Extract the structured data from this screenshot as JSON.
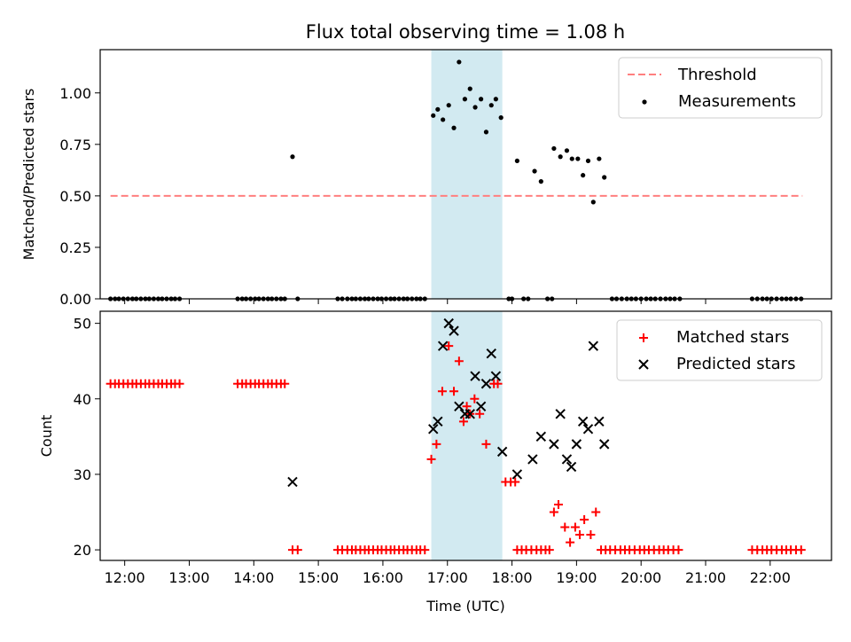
{
  "title": "Flux total observing time = 1.08 h",
  "colors": {
    "threshold": "#ff7f7f",
    "measurement": "#000000",
    "matched": "#ff0000",
    "predicted": "#000000",
    "span": "#add8e6"
  },
  "chart_data": [
    {
      "type": "scatter",
      "ylabel": "Matched/Predicted stars",
      "ylim": [
        0,
        1.21
      ],
      "xlim": [
        11.62,
        22.95
      ],
      "yticks": [
        "0.00",
        "0.25",
        "0.50",
        "0.75",
        "1.00"
      ],
      "yticks_values": [
        0,
        0.25,
        0.5,
        0.75,
        1.0
      ],
      "highlight_span": [
        16.75,
        17.85
      ],
      "legend": [
        "Threshold",
        "Measurements"
      ],
      "legend_position": "top-right",
      "threshold": {
        "name": "Threshold",
        "x": [
          11.78,
          22.5
        ],
        "y": 0.5,
        "style": "dashed"
      },
      "measurements": {
        "name": "Measurements",
        "points": [
          [
            11.78,
            0
          ],
          [
            11.85,
            0
          ],
          [
            11.91,
            0
          ],
          [
            11.98,
            0
          ],
          [
            12.05,
            0
          ],
          [
            12.12,
            0
          ],
          [
            12.18,
            0
          ],
          [
            12.25,
            0
          ],
          [
            12.32,
            0
          ],
          [
            12.38,
            0
          ],
          [
            12.45,
            0
          ],
          [
            12.52,
            0
          ],
          [
            12.58,
            0
          ],
          [
            12.65,
            0
          ],
          [
            12.72,
            0
          ],
          [
            12.78,
            0
          ],
          [
            12.85,
            0
          ],
          [
            13.75,
            0
          ],
          [
            13.82,
            0
          ],
          [
            13.88,
            0
          ],
          [
            13.95,
            0
          ],
          [
            14.02,
            0
          ],
          [
            14.08,
            0
          ],
          [
            14.15,
            0
          ],
          [
            14.22,
            0
          ],
          [
            14.28,
            0
          ],
          [
            14.35,
            0
          ],
          [
            14.42,
            0
          ],
          [
            14.48,
            0
          ],
          [
            14.6,
            0.69
          ],
          [
            14.68,
            0
          ],
          [
            15.3,
            0
          ],
          [
            15.37,
            0
          ],
          [
            15.45,
            0
          ],
          [
            15.52,
            0
          ],
          [
            15.58,
            0
          ],
          [
            15.65,
            0
          ],
          [
            15.72,
            0
          ],
          [
            15.78,
            0
          ],
          [
            15.85,
            0
          ],
          [
            15.92,
            0
          ],
          [
            15.98,
            0
          ],
          [
            16.05,
            0
          ],
          [
            16.12,
            0
          ],
          [
            16.18,
            0
          ],
          [
            16.25,
            0
          ],
          [
            16.32,
            0
          ],
          [
            16.38,
            0
          ],
          [
            16.45,
            0
          ],
          [
            16.52,
            0
          ],
          [
            16.58,
            0
          ],
          [
            16.65,
            0
          ],
          [
            16.78,
            0.89
          ],
          [
            16.85,
            0.92
          ],
          [
            16.93,
            0.87
          ],
          [
            17.02,
            0.94
          ],
          [
            17.1,
            0.83
          ],
          [
            17.18,
            1.15
          ],
          [
            17.27,
            0.97
          ],
          [
            17.35,
            1.02
          ],
          [
            17.43,
            0.93
          ],
          [
            17.52,
            0.97
          ],
          [
            17.6,
            0.81
          ],
          [
            17.68,
            0.94
          ],
          [
            17.75,
            0.97
          ],
          [
            17.83,
            0.88
          ],
          [
            17.95,
            0
          ],
          [
            18.0,
            0
          ],
          [
            18.08,
            0.67
          ],
          [
            18.18,
            0
          ],
          [
            18.25,
            0
          ],
          [
            18.35,
            0.62
          ],
          [
            18.45,
            0.57
          ],
          [
            18.55,
            0
          ],
          [
            18.62,
            0
          ],
          [
            18.65,
            0.73
          ],
          [
            18.75,
            0.69
          ],
          [
            18.85,
            0.72
          ],
          [
            18.93,
            0.68
          ],
          [
            19.02,
            0.68
          ],
          [
            19.1,
            0.6
          ],
          [
            19.18,
            0.67
          ],
          [
            19.26,
            0.47
          ],
          [
            19.35,
            0.68
          ],
          [
            19.43,
            0.59
          ],
          [
            19.55,
            0
          ],
          [
            19.62,
            0
          ],
          [
            19.7,
            0
          ],
          [
            19.78,
            0
          ],
          [
            19.85,
            0
          ],
          [
            19.92,
            0
          ],
          [
            20.0,
            0
          ],
          [
            20.08,
            0
          ],
          [
            20.15,
            0
          ],
          [
            20.22,
            0
          ],
          [
            20.3,
            0
          ],
          [
            20.38,
            0
          ],
          [
            20.45,
            0
          ],
          [
            20.52,
            0
          ],
          [
            20.6,
            0
          ],
          [
            21.72,
            0
          ],
          [
            21.8,
            0
          ],
          [
            21.88,
            0
          ],
          [
            21.95,
            0
          ],
          [
            22.02,
            0
          ],
          [
            22.1,
            0
          ],
          [
            22.18,
            0
          ],
          [
            22.25,
            0
          ],
          [
            22.32,
            0
          ],
          [
            22.4,
            0
          ],
          [
            22.48,
            0
          ]
        ]
      }
    },
    {
      "type": "scatter",
      "xlabel": "Time (UTC)",
      "ylabel": "Count",
      "ylim": [
        18.6,
        51.6
      ],
      "xlim": [
        11.62,
        22.95
      ],
      "yticks": [
        "20",
        "30",
        "40",
        "50"
      ],
      "yticks_values": [
        20,
        30,
        40,
        50
      ],
      "xticks": [
        "12:00",
        "13:00",
        "14:00",
        "15:00",
        "16:00",
        "17:00",
        "18:00",
        "19:00",
        "20:00",
        "21:00",
        "22:00"
      ],
      "xticks_values": [
        12,
        13,
        14,
        15,
        16,
        17,
        18,
        19,
        20,
        21,
        22
      ],
      "highlight_span": [
        16.75,
        17.85
      ],
      "legend": [
        "Matched stars",
        "Predicted stars"
      ],
      "legend_position": "top-right",
      "matched": {
        "name": "Matched stars",
        "points": [
          [
            11.78,
            42
          ],
          [
            11.85,
            42
          ],
          [
            11.91,
            42
          ],
          [
            11.98,
            42
          ],
          [
            12.05,
            42
          ],
          [
            12.12,
            42
          ],
          [
            12.18,
            42
          ],
          [
            12.25,
            42
          ],
          [
            12.32,
            42
          ],
          [
            12.38,
            42
          ],
          [
            12.45,
            42
          ],
          [
            12.52,
            42
          ],
          [
            12.58,
            42
          ],
          [
            12.65,
            42
          ],
          [
            12.72,
            42
          ],
          [
            12.78,
            42
          ],
          [
            12.85,
            42
          ],
          [
            13.75,
            42
          ],
          [
            13.82,
            42
          ],
          [
            13.88,
            42
          ],
          [
            13.95,
            42
          ],
          [
            14.02,
            42
          ],
          [
            14.08,
            42
          ],
          [
            14.15,
            42
          ],
          [
            14.22,
            42
          ],
          [
            14.28,
            42
          ],
          [
            14.35,
            42
          ],
          [
            14.42,
            42
          ],
          [
            14.48,
            42
          ],
          [
            14.6,
            20
          ],
          [
            14.68,
            20
          ],
          [
            15.3,
            20
          ],
          [
            15.37,
            20
          ],
          [
            15.45,
            20
          ],
          [
            15.52,
            20
          ],
          [
            15.58,
            20
          ],
          [
            15.65,
            20
          ],
          [
            15.72,
            20
          ],
          [
            15.78,
            20
          ],
          [
            15.85,
            20
          ],
          [
            15.92,
            20
          ],
          [
            15.98,
            20
          ],
          [
            16.05,
            20
          ],
          [
            16.12,
            20
          ],
          [
            16.18,
            20
          ],
          [
            16.25,
            20
          ],
          [
            16.32,
            20
          ],
          [
            16.38,
            20
          ],
          [
            16.45,
            20
          ],
          [
            16.52,
            20
          ],
          [
            16.58,
            20
          ],
          [
            16.65,
            20
          ],
          [
            16.75,
            32
          ],
          [
            16.83,
            34
          ],
          [
            16.92,
            41
          ],
          [
            17.02,
            47
          ],
          [
            17.1,
            41
          ],
          [
            17.18,
            45
          ],
          [
            17.25,
            37
          ],
          [
            17.3,
            39
          ],
          [
            17.35,
            38
          ],
          [
            17.42,
            40
          ],
          [
            17.5,
            38
          ],
          [
            17.6,
            34
          ],
          [
            17.72,
            42
          ],
          [
            17.78,
            42
          ],
          [
            17.9,
            29
          ],
          [
            17.98,
            29
          ],
          [
            18.05,
            29
          ],
          [
            18.08,
            20
          ],
          [
            18.15,
            20
          ],
          [
            18.22,
            20
          ],
          [
            18.3,
            20
          ],
          [
            18.38,
            20
          ],
          [
            18.45,
            20
          ],
          [
            18.52,
            20
          ],
          [
            18.58,
            20
          ],
          [
            18.65,
            25
          ],
          [
            18.72,
            26
          ],
          [
            18.82,
            23
          ],
          [
            18.9,
            21
          ],
          [
            18.98,
            23
          ],
          [
            19.05,
            22
          ],
          [
            19.12,
            24
          ],
          [
            19.22,
            22
          ],
          [
            19.3,
            25
          ],
          [
            19.38,
            20
          ],
          [
            19.45,
            20
          ],
          [
            19.52,
            20
          ],
          [
            19.6,
            20
          ],
          [
            19.68,
            20
          ],
          [
            19.75,
            20
          ],
          [
            19.82,
            20
          ],
          [
            19.9,
            20
          ],
          [
            19.98,
            20
          ],
          [
            20.05,
            20
          ],
          [
            20.12,
            20
          ],
          [
            20.2,
            20
          ],
          [
            20.28,
            20
          ],
          [
            20.35,
            20
          ],
          [
            20.42,
            20
          ],
          [
            20.5,
            20
          ],
          [
            20.58,
            20
          ],
          [
            21.72,
            20
          ],
          [
            21.8,
            20
          ],
          [
            21.88,
            20
          ],
          [
            21.95,
            20
          ],
          [
            22.02,
            20
          ],
          [
            22.1,
            20
          ],
          [
            22.18,
            20
          ],
          [
            22.25,
            20
          ],
          [
            22.32,
            20
          ],
          [
            22.4,
            20
          ],
          [
            22.48,
            20
          ]
        ]
      },
      "predicted": {
        "name": "Predicted stars",
        "points": [
          [
            14.6,
            29
          ],
          [
            16.78,
            36
          ],
          [
            16.85,
            37
          ],
          [
            16.93,
            47
          ],
          [
            17.02,
            50
          ],
          [
            17.1,
            49
          ],
          [
            17.18,
            39
          ],
          [
            17.27,
            38
          ],
          [
            17.35,
            38
          ],
          [
            17.43,
            43
          ],
          [
            17.52,
            39
          ],
          [
            17.6,
            42
          ],
          [
            17.68,
            46
          ],
          [
            17.75,
            43
          ],
          [
            17.85,
            33
          ],
          [
            18.08,
            30
          ],
          [
            18.32,
            32
          ],
          [
            18.45,
            35
          ],
          [
            18.65,
            34
          ],
          [
            18.75,
            38
          ],
          [
            18.85,
            32
          ],
          [
            18.92,
            31
          ],
          [
            19.0,
            34
          ],
          [
            19.1,
            37
          ],
          [
            19.18,
            36
          ],
          [
            19.26,
            47
          ],
          [
            19.35,
            37
          ],
          [
            19.43,
            34
          ]
        ]
      }
    }
  ]
}
